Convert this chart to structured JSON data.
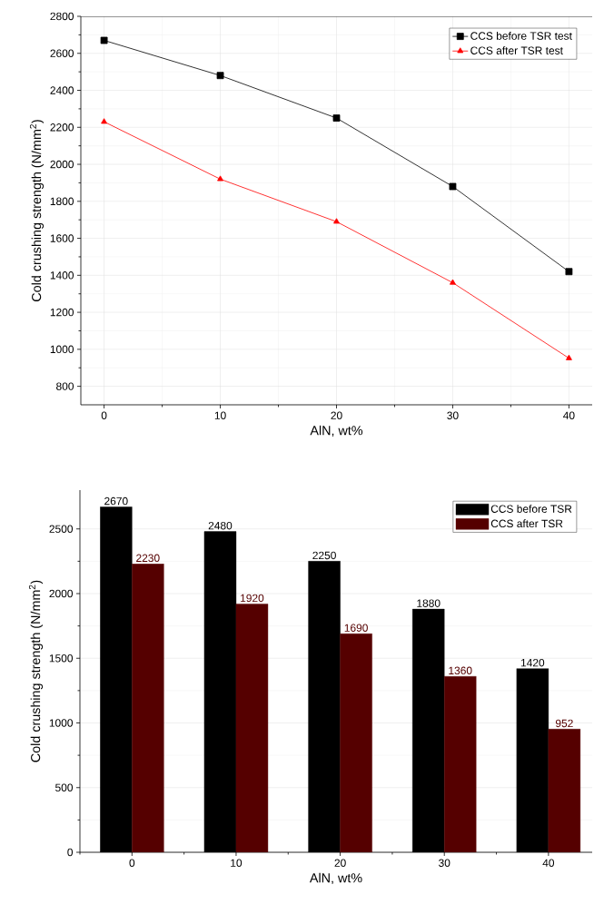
{
  "chart_data": [
    {
      "type": "line",
      "xlabel": "AlN, wt%",
      "ylabel": "Cold crushing strength (N/mm$^{2}$)",
      "x": [
        0,
        10,
        20,
        30,
        40
      ],
      "series": [
        {
          "name": "CCS before TSR test",
          "color": "#000000",
          "marker": "square",
          "values": [
            2670,
            2480,
            2250,
            1880,
            1420
          ]
        },
        {
          "name": "CCS  after TSR test",
          "color": "#ff0000",
          "marker": "triangle",
          "values": [
            2230,
            1920,
            1690,
            1360,
            952
          ]
        }
      ],
      "xlim": [
        -2,
        42
      ],
      "ylim": [
        700,
        2800
      ],
      "xticks": [
        0,
        10,
        20,
        30,
        40
      ],
      "yticks": [
        800,
        1000,
        1200,
        1400,
        1600,
        1800,
        2000,
        2200,
        2400,
        2600,
        2800
      ],
      "grid": true,
      "legend": "top right"
    },
    {
      "type": "bar",
      "xlabel": "AlN, wt%",
      "ylabel": "Cold crushing strength (N/mm$^{2}$)",
      "categories": [
        "0",
        "10",
        "20",
        "30",
        "40"
      ],
      "series": [
        {
          "name": "CCS before TSR",
          "color": "#000000",
          "values": [
            2670,
            2480,
            2250,
            1880,
            1420
          ]
        },
        {
          "name": "CCS after TSR",
          "color": "#550000",
          "values": [
            2230,
            1920,
            1690,
            1360,
            952
          ]
        }
      ],
      "ylim": [
        0,
        2800
      ],
      "yticks": [
        0,
        500,
        1000,
        1500,
        2000,
        2500
      ],
      "grid": "y",
      "legend": "top right",
      "data_labels": true
    }
  ]
}
